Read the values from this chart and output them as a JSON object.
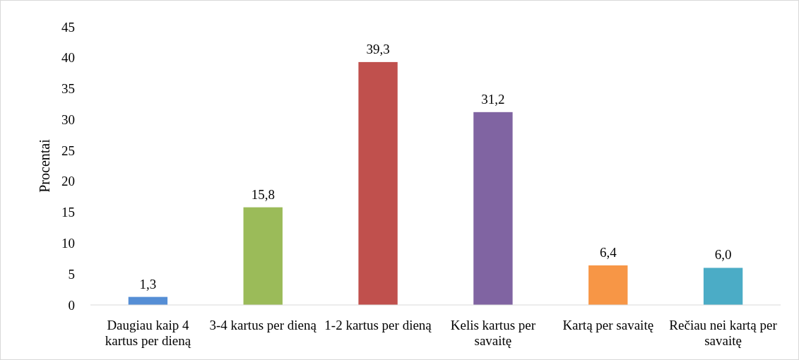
{
  "chart_data": {
    "type": "bar",
    "ylabel": "Procentai",
    "categories": [
      "Daugiau kaip 4 kartus per dieną",
      "3-4 kartus per dieną",
      "1-2 kartus per dieną",
      "Kelis kartus per savaitę",
      "Kartą per savaitę",
      "Rečiau nei kartą per savaitę"
    ],
    "values": [
      1.3,
      15.8,
      39.3,
      31.2,
      6.4,
      6.0
    ],
    "value_labels": [
      "1,3",
      "15,8",
      "39,3",
      "31,2",
      "6,4",
      "6,0"
    ],
    "colors": [
      "#558ed5",
      "#9bbb59",
      "#c0504d",
      "#8064a2",
      "#f79646",
      "#4bacc6"
    ],
    "ylim": [
      0,
      45
    ],
    "yticks": [
      0,
      5,
      10,
      15,
      20,
      25,
      30,
      35,
      40,
      45
    ],
    "grid": false
  }
}
